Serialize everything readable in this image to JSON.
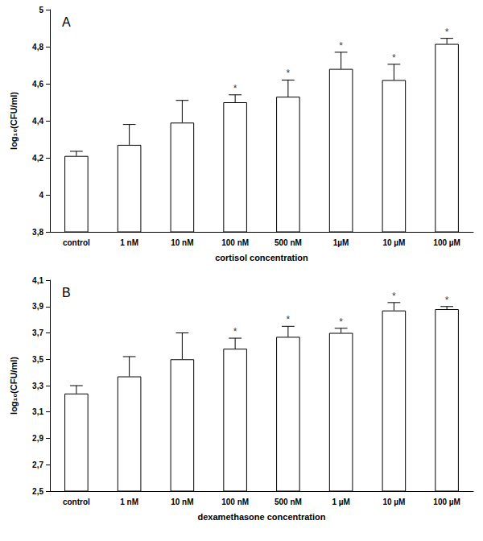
{
  "chart_data": [
    {
      "type": "bar",
      "title": "A",
      "categories": [
        "control",
        "1 nM",
        "10 nM",
        "100 nM",
        "500 nM",
        "1µM",
        "10 µM",
        "100 µM"
      ],
      "values": [
        4.21,
        4.27,
        4.39,
        4.5,
        4.53,
        4.68,
        4.62,
        4.815
      ],
      "errors": [
        0.025,
        0.11,
        0.12,
        0.04,
        0.09,
        0.09,
        0.085,
        0.03
      ],
      "color": "#ffffff",
      "xlabel": "cortisol concentration",
      "ylabel": "log₁₀(CFU/ml)",
      "ylim": [
        3.8,
        5
      ],
      "yticks": [
        {
          "value": 3.8,
          "label": "3,8"
        },
        4,
        {
          "value": 4.2,
          "label": "4,2"
        },
        {
          "value": 4.4,
          "label": "4,4"
        },
        {
          "value": 4.6,
          "label": "4,6"
        },
        {
          "value": 4.8,
          "label": "4,8"
        },
        5
      ],
      "annotations": [
        {
          "category": "100 nM",
          "text": "*"
        },
        {
          "category": "500 nM",
          "text": "*"
        },
        {
          "category": "1µM",
          "text": "*"
        },
        {
          "category": "10 µM",
          "text": "*"
        },
        {
          "category": "100 µM",
          "text": "*"
        }
      ],
      "grid": false
    },
    {
      "type": "bar",
      "title": "B",
      "categories": [
        "control",
        "1 nM",
        "10 nM",
        "100 nM",
        "500 nM",
        "1 µM",
        "10 µM",
        "100 µM"
      ],
      "values": [
        3.24,
        3.37,
        3.5,
        3.58,
        3.67,
        3.7,
        3.87,
        3.88
      ],
      "errors": [
        0.06,
        0.15,
        0.2,
        0.08,
        0.08,
        0.035,
        0.06,
        0.02
      ],
      "color": "#ffffff",
      "xlabel": "dexamethasone concentration",
      "ylabel": "log₁₀(CFU/ml)",
      "ylim": [
        2.5,
        4.1
      ],
      "yticks": [
        {
          "value": 2.5,
          "label": "2,5"
        },
        {
          "value": 2.7,
          "label": "2,7"
        },
        {
          "value": 2.9,
          "label": "2,9"
        },
        {
          "value": 3.1,
          "label": "3,1"
        },
        {
          "value": 3.3,
          "label": "3,3"
        },
        {
          "value": 3.5,
          "label": "3,5"
        },
        {
          "value": 3.7,
          "label": "3,7"
        },
        {
          "value": 3.9,
          "label": "3,9"
        },
        {
          "value": 4.1,
          "label": "4,1"
        }
      ],
      "annotations": [
        {
          "category": "100 nM",
          "text": "*"
        },
        {
          "category": "500 nM",
          "text": "*"
        },
        {
          "category": "1 µM",
          "text": "*"
        },
        {
          "category": "10 µM",
          "text": "*"
        },
        {
          "category": "100 µM",
          "text": "*"
        }
      ],
      "grid": false
    }
  ]
}
